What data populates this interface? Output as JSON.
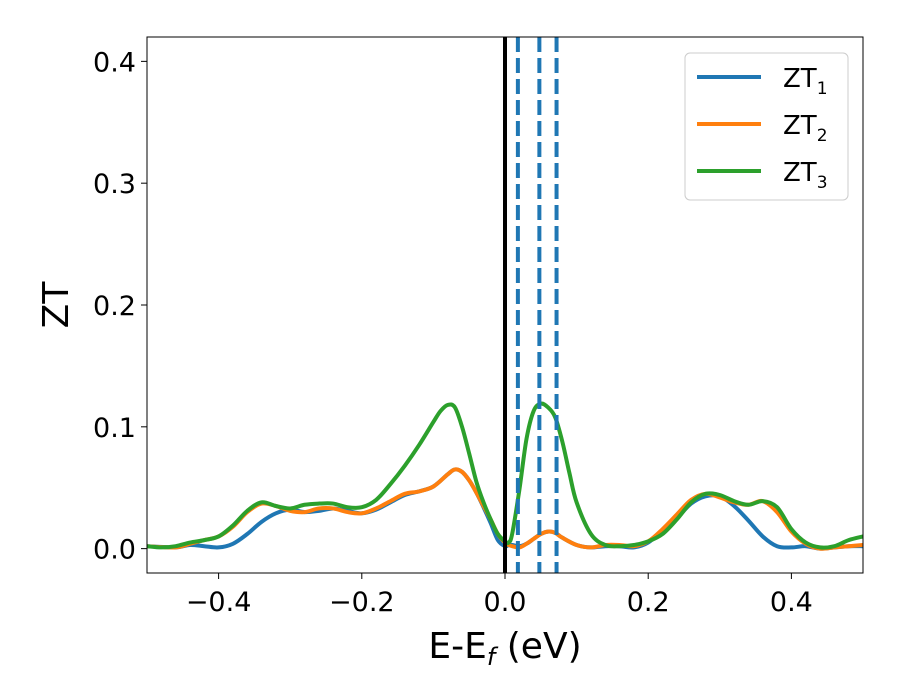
{
  "chart_data": {
    "type": "line",
    "xlabel": "E-E",
    "xlabel_sub": "f",
    "xlabel_unit": " (eV)",
    "ylabel": "ZT",
    "xlim": [
      -0.5,
      0.5
    ],
    "ylim": [
      -0.02,
      0.42
    ],
    "xticks": [
      -0.4,
      -0.2,
      0.0,
      0.2,
      0.4
    ],
    "xtick_labels": [
      "−0.4",
      "−0.2",
      "0.0",
      "0.2",
      "0.4"
    ],
    "yticks": [
      0.0,
      0.1,
      0.2,
      0.3,
      0.4
    ],
    "ytick_labels": [
      "0.0",
      "0.1",
      "0.2",
      "0.3",
      "0.4"
    ],
    "grid": false,
    "legend_position": "top-right",
    "vlines": [
      {
        "x": 0.0,
        "style": "solid",
        "color": "#000000"
      },
      {
        "x": 0.018,
        "style": "dashed",
        "color": "#1f77b4"
      },
      {
        "x": 0.048,
        "style": "dashed",
        "color": "#1f77b4"
      },
      {
        "x": 0.072,
        "style": "dashed",
        "color": "#1f77b4"
      }
    ],
    "series": [
      {
        "name": "ZT",
        "name_sub": "1",
        "color": "#1f77b4",
        "x": [
          -0.5,
          -0.46,
          -0.44,
          -0.42,
          -0.4,
          -0.38,
          -0.36,
          -0.34,
          -0.32,
          -0.3,
          -0.28,
          -0.26,
          -0.24,
          -0.22,
          -0.2,
          -0.18,
          -0.16,
          -0.14,
          -0.12,
          -0.1,
          -0.08,
          -0.07,
          -0.06,
          -0.05,
          -0.04,
          -0.03,
          -0.02,
          -0.01,
          0.0,
          0.005,
          0.01,
          0.02,
          0.03,
          0.04,
          0.05,
          0.06,
          0.07,
          0.08,
          0.1,
          0.12,
          0.14,
          0.16,
          0.18,
          0.2,
          0.22,
          0.24,
          0.26,
          0.28,
          0.3,
          0.32,
          0.34,
          0.36,
          0.38,
          0.4,
          0.42,
          0.44,
          0.46,
          0.48,
          0.5
        ],
        "y": [
          0.002,
          0.001,
          0.003,
          0.002,
          0.001,
          0.004,
          0.012,
          0.022,
          0.029,
          0.032,
          0.03,
          0.031,
          0.033,
          0.031,
          0.029,
          0.032,
          0.038,
          0.044,
          0.047,
          0.051,
          0.061,
          0.065,
          0.063,
          0.056,
          0.046,
          0.034,
          0.021,
          0.007,
          0.002,
          0.003,
          0.003,
          0.002,
          0.004,
          0.008,
          0.012,
          0.014,
          0.013,
          0.009,
          0.003,
          0.001,
          0.002,
          0.002,
          0.001,
          0.005,
          0.015,
          0.025,
          0.037,
          0.043,
          0.043,
          0.035,
          0.023,
          0.01,
          0.002,
          0.001,
          0.002,
          0.0,
          0.001,
          0.002,
          0.002
        ]
      },
      {
        "name": "ZT",
        "name_sub": "2",
        "color": "#ff7f0e",
        "x": [
          -0.5,
          -0.46,
          -0.44,
          -0.42,
          -0.4,
          -0.38,
          -0.36,
          -0.34,
          -0.32,
          -0.3,
          -0.28,
          -0.26,
          -0.24,
          -0.22,
          -0.2,
          -0.18,
          -0.16,
          -0.14,
          -0.12,
          -0.1,
          -0.08,
          -0.07,
          -0.06,
          -0.05,
          -0.04,
          -0.03,
          -0.02,
          -0.01,
          0.0,
          0.005,
          0.01,
          0.02,
          0.03,
          0.04,
          0.05,
          0.06,
          0.07,
          0.08,
          0.1,
          0.12,
          0.14,
          0.16,
          0.18,
          0.2,
          0.22,
          0.24,
          0.26,
          0.28,
          0.3,
          0.32,
          0.34,
          0.36,
          0.38,
          0.4,
          0.42,
          0.44,
          0.46,
          0.48,
          0.5
        ],
        "y": [
          0.002,
          0.001,
          0.004,
          0.007,
          0.01,
          0.018,
          0.03,
          0.037,
          0.035,
          0.031,
          0.03,
          0.033,
          0.033,
          0.03,
          0.029,
          0.033,
          0.039,
          0.045,
          0.047,
          0.051,
          0.061,
          0.065,
          0.063,
          0.056,
          0.046,
          0.035,
          0.024,
          0.012,
          0.005,
          0.003,
          0.002,
          0.001,
          0.004,
          0.008,
          0.012,
          0.014,
          0.013,
          0.009,
          0.003,
          0.001,
          0.003,
          0.003,
          0.002,
          0.006,
          0.016,
          0.028,
          0.04,
          0.045,
          0.042,
          0.038,
          0.036,
          0.039,
          0.03,
          0.014,
          0.004,
          0.0,
          0.001,
          0.002,
          0.003
        ]
      },
      {
        "name": "ZT",
        "name_sub": "3",
        "color": "#2ca02c",
        "x": [
          -0.5,
          -0.48,
          -0.46,
          -0.44,
          -0.42,
          -0.4,
          -0.38,
          -0.36,
          -0.34,
          -0.32,
          -0.3,
          -0.28,
          -0.26,
          -0.24,
          -0.22,
          -0.2,
          -0.18,
          -0.16,
          -0.14,
          -0.12,
          -0.1,
          -0.09,
          -0.08,
          -0.07,
          -0.06,
          -0.05,
          -0.04,
          -0.03,
          -0.02,
          -0.01,
          0.0,
          0.005,
          0.01,
          0.02,
          0.03,
          0.04,
          0.05,
          0.06,
          0.07,
          0.08,
          0.09,
          0.1,
          0.12,
          0.14,
          0.16,
          0.18,
          0.2,
          0.22,
          0.24,
          0.26,
          0.28,
          0.3,
          0.32,
          0.34,
          0.36,
          0.38,
          0.4,
          0.42,
          0.44,
          0.46,
          0.48,
          0.5
        ],
        "y": [
          0.002,
          0.001,
          0.002,
          0.005,
          0.007,
          0.01,
          0.019,
          0.031,
          0.038,
          0.035,
          0.033,
          0.036,
          0.037,
          0.037,
          0.034,
          0.034,
          0.04,
          0.053,
          0.068,
          0.085,
          0.104,
          0.113,
          0.118,
          0.116,
          0.1,
          0.078,
          0.055,
          0.038,
          0.024,
          0.012,
          0.006,
          0.005,
          0.012,
          0.048,
          0.09,
          0.113,
          0.119,
          0.116,
          0.108,
          0.088,
          0.062,
          0.038,
          0.012,
          0.003,
          0.002,
          0.003,
          0.006,
          0.012,
          0.024,
          0.038,
          0.045,
          0.044,
          0.039,
          0.036,
          0.039,
          0.034,
          0.016,
          0.005,
          0.001,
          0.002,
          0.007,
          0.01
        ]
      }
    ]
  }
}
